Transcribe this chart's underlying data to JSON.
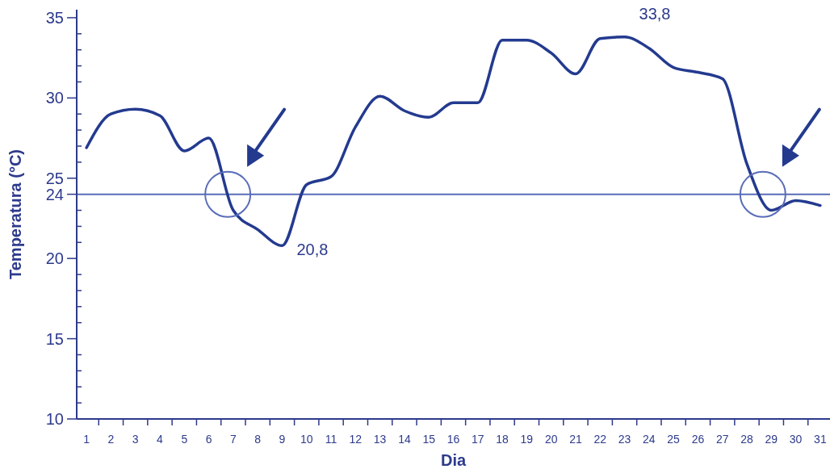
{
  "chart_data": {
    "type": "line",
    "xlabel": "Dia",
    "ylabel": "Temperatura (°C)",
    "x": [
      1,
      2,
      3,
      4,
      5,
      6,
      7,
      8,
      9,
      10,
      11,
      12,
      13,
      14,
      15,
      16,
      17,
      18,
      19,
      20,
      21,
      22,
      23,
      24,
      25,
      26,
      27,
      28,
      29,
      30,
      31
    ],
    "series": [
      {
        "color": "#233a8f",
        "values": [
          26.9,
          29.0,
          29.3,
          28.9,
          26.7,
          27.5,
          23.0,
          21.8,
          20.8,
          24.6,
          25.1,
          28.2,
          30.1,
          29.2,
          28.8,
          29.7,
          29.7,
          33.6,
          33.6,
          32.8,
          31.5,
          33.7,
          33.8,
          33.1,
          31.9,
          31.6,
          31.2,
          25.9,
          23.0,
          23.6,
          23.3
        ]
      }
    ],
    "xlim": [
      0.6,
      31.4
    ],
    "ylim": [
      10,
      35.5
    ],
    "xticks": [
      1,
      2,
      3,
      4,
      5,
      6,
      7,
      8,
      9,
      10,
      11,
      12,
      13,
      14,
      15,
      16,
      17,
      18,
      19,
      20,
      21,
      22,
      23,
      24,
      25,
      26,
      27,
      28,
      29,
      30,
      31
    ],
    "yticks": [
      10,
      {
        "value": 11,
        "label": null
      },
      {
        "value": 12,
        "label": null
      },
      {
        "value": 13,
        "label": null
      },
      {
        "value": 14,
        "label": null
      },
      15,
      {
        "value": 16,
        "label": null
      },
      {
        "value": 17,
        "label": null
      },
      {
        "value": 18,
        "label": null
      },
      {
        "value": 19,
        "label": null
      },
      20,
      {
        "value": 21,
        "label": null
      },
      {
        "value": 22,
        "label": null
      },
      {
        "value": 23,
        "label": null
      },
      24,
      25,
      {
        "value": 26,
        "label": null
      },
      {
        "value": 27,
        "label": null
      },
      {
        "value": 28,
        "label": null
      },
      {
        "value": 29,
        "label": null
      },
      30,
      {
        "value": 31,
        "label": null
      },
      {
        "value": 32,
        "label": null
      },
      {
        "value": 33,
        "label": null
      },
      {
        "value": 34,
        "label": null
      },
      35
    ],
    "ref_lines": [
      {
        "axis": "y",
        "value": 24,
        "color": "#5a6cb8"
      }
    ],
    "annotations": [
      {
        "text": "20,8",
        "x": 9,
        "y": 20.8
      },
      {
        "text": "33,8",
        "x": 23,
        "y": 33.8
      }
    ],
    "grid": false,
    "marker": "none",
    "line_style": "solid"
  }
}
